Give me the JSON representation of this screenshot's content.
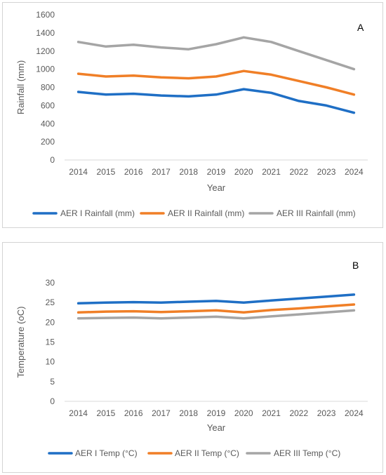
{
  "chart_data": [
    {
      "type": "line",
      "panel_label": "A",
      "x": [
        "2014",
        "2015",
        "2016",
        "2017",
        "2018",
        "2019",
        "2020",
        "2021",
        "2022",
        "2023",
        "2024"
      ],
      "xlabel": "Year",
      "ylabel": "Rainfall (mm)",
      "ylim": [
        0,
        1600
      ],
      "yticks": [
        0,
        200,
        400,
        600,
        800,
        1000,
        1200,
        1400,
        1600
      ],
      "grid": false,
      "legend_position": "bottom",
      "series": [
        {
          "name": "AER I Rainfall (mm)",
          "color": "#1f6fc5",
          "values": [
            750,
            720,
            730,
            710,
            700,
            720,
            780,
            740,
            650,
            600,
            520
          ]
        },
        {
          "name": "AER II Rainfall (mm)",
          "color": "#f07f27",
          "values": [
            950,
            920,
            930,
            910,
            900,
            920,
            980,
            940,
            870,
            800,
            720
          ]
        },
        {
          "name": "AER III Rainfall (mm)",
          "color": "#a5a5a5",
          "values": [
            1300,
            1250,
            1270,
            1240,
            1220,
            1275,
            1350,
            1300,
            1200,
            1100,
            1000
          ]
        }
      ]
    },
    {
      "type": "line",
      "panel_label": "B",
      "x": [
        "2014",
        "2015",
        "2016",
        "2017",
        "2018",
        "2019",
        "2020",
        "2021",
        "2022",
        "2023",
        "2024"
      ],
      "xlabel": "Year",
      "ylabel": "Temperature (oC)",
      "ylim": [
        0,
        30
      ],
      "yticks": [
        0,
        5,
        10,
        15,
        20,
        25,
        30
      ],
      "grid": false,
      "legend_position": "bottom",
      "series": [
        {
          "name": "AER I Temp (°C)",
          "color": "#1f6fc5",
          "values": [
            24.8,
            25.0,
            25.1,
            25.0,
            25.2,
            25.4,
            25.0,
            25.5,
            26.0,
            26.5,
            27.0
          ]
        },
        {
          "name": "AER II Temp (°C)",
          "color": "#f07f27",
          "values": [
            22.5,
            22.7,
            22.8,
            22.6,
            22.8,
            23.0,
            22.5,
            23.1,
            23.5,
            24.0,
            24.5
          ]
        },
        {
          "name": "AER III Temp (°C)",
          "color": "#a5a5a5",
          "values": [
            21.0,
            21.1,
            21.2,
            21.0,
            21.2,
            21.4,
            21.0,
            21.5,
            22.0,
            22.5,
            23.0
          ]
        }
      ]
    }
  ]
}
